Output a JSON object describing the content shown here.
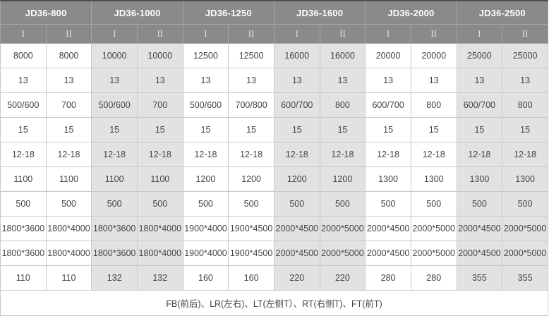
{
  "table": {
    "groups": [
      {
        "label": "JD36-800"
      },
      {
        "label": "JD36-1000"
      },
      {
        "label": "JD36-1250"
      },
      {
        "label": "JD36-1600"
      },
      {
        "label": "JD36-2000"
      },
      {
        "label": "JD36-2500"
      }
    ],
    "subheaders": [
      "I",
      "II",
      "I",
      "II",
      "I",
      "II",
      "I",
      "II",
      "I",
      "II",
      "I",
      "II"
    ],
    "rows": [
      [
        "8000",
        "8000",
        "10000",
        "10000",
        "12500",
        "12500",
        "16000",
        "16000",
        "20000",
        "20000",
        "25000",
        "25000"
      ],
      [
        "13",
        "13",
        "13",
        "13",
        "13",
        "13",
        "13",
        "13",
        "13",
        "13",
        "13",
        "13"
      ],
      [
        "500/600",
        "700",
        "500/600",
        "700",
        "500/600",
        "700/800",
        "600/700",
        "800",
        "600/700",
        "800",
        "600/700",
        "800"
      ],
      [
        "15",
        "15",
        "15",
        "15",
        "15",
        "15",
        "15",
        "15",
        "15",
        "15",
        "15",
        "15"
      ],
      [
        "12-18",
        "12-18",
        "12-18",
        "12-18",
        "12-18",
        "12-18",
        "12-18",
        "12-18",
        "12-18",
        "12-18",
        "12-18",
        "12-18"
      ],
      [
        "1100",
        "1100",
        "1100",
        "1100",
        "1200",
        "1200",
        "1200",
        "1200",
        "1300",
        "1300",
        "1300",
        "1300"
      ],
      [
        "500",
        "500",
        "500",
        "500",
        "500",
        "500",
        "500",
        "500",
        "500",
        "500",
        "500",
        "500"
      ],
      [
        "1800*3600",
        "1800*4000",
        "1800*3600",
        "1800*4000",
        "1900*4000",
        "1900*4500",
        "2000*4500",
        "2000*5000",
        "2000*4500",
        "2000*5000",
        "2000*4500",
        "2000*5000"
      ],
      [
        "1800*3600",
        "1800*4000",
        "1800*3600",
        "1800*4000",
        "1900*4000",
        "1900*4500",
        "2000*4500",
        "2000*5000",
        "2000*4500",
        "2000*5000",
        "2000*4500",
        "2000*5000"
      ],
      [
        "110",
        "110",
        "132",
        "132",
        "160",
        "160",
        "220",
        "220",
        "280",
        "280",
        "355",
        "355"
      ]
    ],
    "footer_note": "FB(前后)、LR(左右)、LT(左侧T）、RT(右侧T)、FT(前T)",
    "colors": {
      "header_bg": "#8a8a8a",
      "header_text": "#ffffff",
      "shade_bg": "#e2e2e2",
      "body_border": "#c9c9c9",
      "cell_text": "#444444",
      "top_border": "#4f4f4f"
    }
  }
}
